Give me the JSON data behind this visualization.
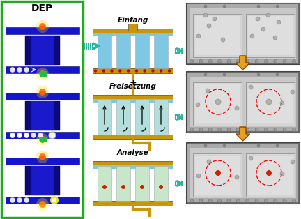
{
  "title": "DEP",
  "labels": [
    "Einfang",
    "Freisetzung",
    "Analyse"
  ],
  "bg_color": "#ffffff",
  "dep_border_color": "#22aa22",
  "gold_color": "#c8960a",
  "light_blue": "#7ec8e3",
  "teal_arrow": "#2ab5a0",
  "red_dot": "#cc0000",
  "light_green": "#c8e6c9",
  "orange_arrow": "#e8a020",
  "dep_blue_dark": "#0a0a7a",
  "dep_blue": "#1515cc",
  "micro_bg": "#b0b0b0",
  "micro_inner": "#d8d8d8",
  "micro_chamber": "#c8c8c8"
}
